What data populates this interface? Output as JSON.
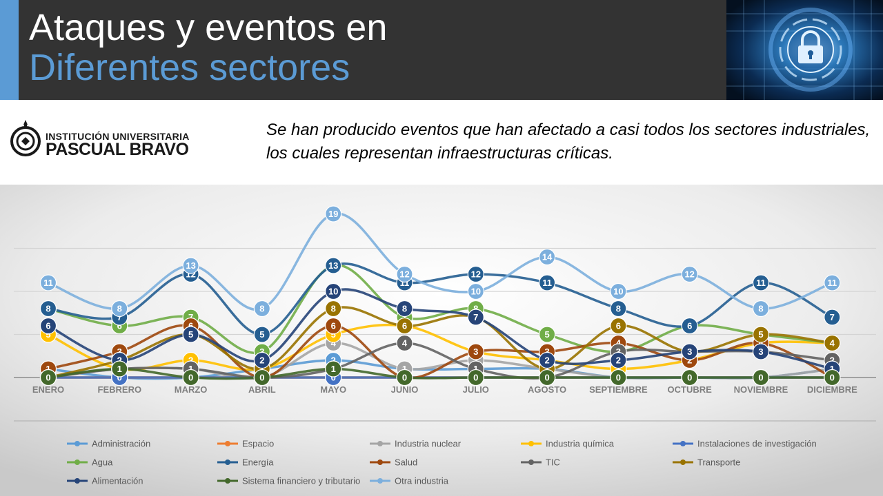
{
  "slide": {
    "title_line1": "Ataques y eventos en",
    "title_line2": "Diferentes sectores",
    "description": "Se han producido eventos que han afectado a casi todos los sectores industriales, los cuales representan infraestructuras críticas.",
    "logo_line1": "INSTITUCIÓN UNIVERSITARIA",
    "logo_line2": "PASCUAL BRAVO",
    "header_image_icon": "padlock-icon",
    "colors": {
      "header_bg": "#333333",
      "accent": "#5b9bd5",
      "title_primary": "#ffffff",
      "title_secondary": "#5b9bd5"
    }
  },
  "chart_data": {
    "type": "line",
    "categories": [
      "ENERO",
      "FEBRERO",
      "MARZO",
      "ABRIL",
      "MAYO",
      "JUNIO",
      "JULIO",
      "AGOSTO",
      "SEPTIEMBRE",
      "OCTUBRE",
      "NOVIEMBRE",
      "DICIEMBRE"
    ],
    "ylim": [
      0,
      20
    ],
    "grid": true,
    "legend_position": "bottom",
    "series": [
      {
        "name": "Administración",
        "color": "#5b9bd5",
        "values": [
          1,
          0,
          0,
          1,
          2,
          1,
          1,
          1,
          0,
          0,
          0,
          1
        ]
      },
      {
        "name": "Espacio",
        "color": "#ed7d31",
        "values": [
          0,
          0,
          0,
          0,
          0,
          0,
          0,
          0,
          0,
          0,
          0,
          0
        ]
      },
      {
        "name": "Industria nuclear",
        "color": "#a5a5a5",
        "values": [
          0,
          1,
          1,
          0,
          4,
          1,
          2,
          1,
          0,
          0,
          0,
          1
        ]
      },
      {
        "name": "Industria química",
        "color": "#ffc000",
        "values": [
          5,
          1,
          2,
          1,
          5,
          6,
          3,
          2,
          1,
          2,
          4,
          4
        ]
      },
      {
        "name": "Instalaciones de investigación",
        "color": "#4472c4",
        "values": [
          0,
          0,
          0,
          0,
          0,
          0,
          0,
          0,
          0,
          0,
          0,
          0
        ]
      },
      {
        "name": "Agua",
        "color": "#70ad47",
        "values": [
          8,
          6,
          7,
          3,
          13,
          7,
          8,
          5,
          3,
          6,
          5,
          4
        ]
      },
      {
        "name": "Energía",
        "color": "#255e91",
        "values": [
          8,
          7,
          12,
          5,
          13,
          11,
          12,
          11,
          8,
          6,
          11,
          7
        ]
      },
      {
        "name": "Salud",
        "color": "#9e480e",
        "values": [
          1,
          3,
          6,
          0,
          6,
          0,
          3,
          3,
          4,
          2,
          4,
          0
        ]
      },
      {
        "name": "TIC",
        "color": "#636363",
        "values": [
          0,
          1,
          1,
          0,
          1,
          4,
          1,
          0,
          3,
          3,
          3,
          2
        ]
      },
      {
        "name": "Transporte",
        "color": "#997300",
        "values": [
          0,
          2,
          5,
          1,
          8,
          6,
          7,
          1,
          6,
          3,
          5,
          4
        ]
      },
      {
        "name": "Alimentación",
        "color": "#264478",
        "values": [
          6,
          2,
          5,
          2,
          10,
          8,
          7,
          2,
          2,
          3,
          3,
          1
        ]
      },
      {
        "name": "Sistema financiero y tributario",
        "color": "#43682b",
        "values": [
          0,
          1,
          0,
          0,
          1,
          0,
          0,
          0,
          0,
          0,
          0,
          0
        ]
      },
      {
        "name": "Otra industria",
        "color": "#7cafdd",
        "values": [
          11,
          8,
          13,
          8,
          19,
          12,
          10,
          14,
          10,
          12,
          8,
          11
        ]
      }
    ]
  }
}
